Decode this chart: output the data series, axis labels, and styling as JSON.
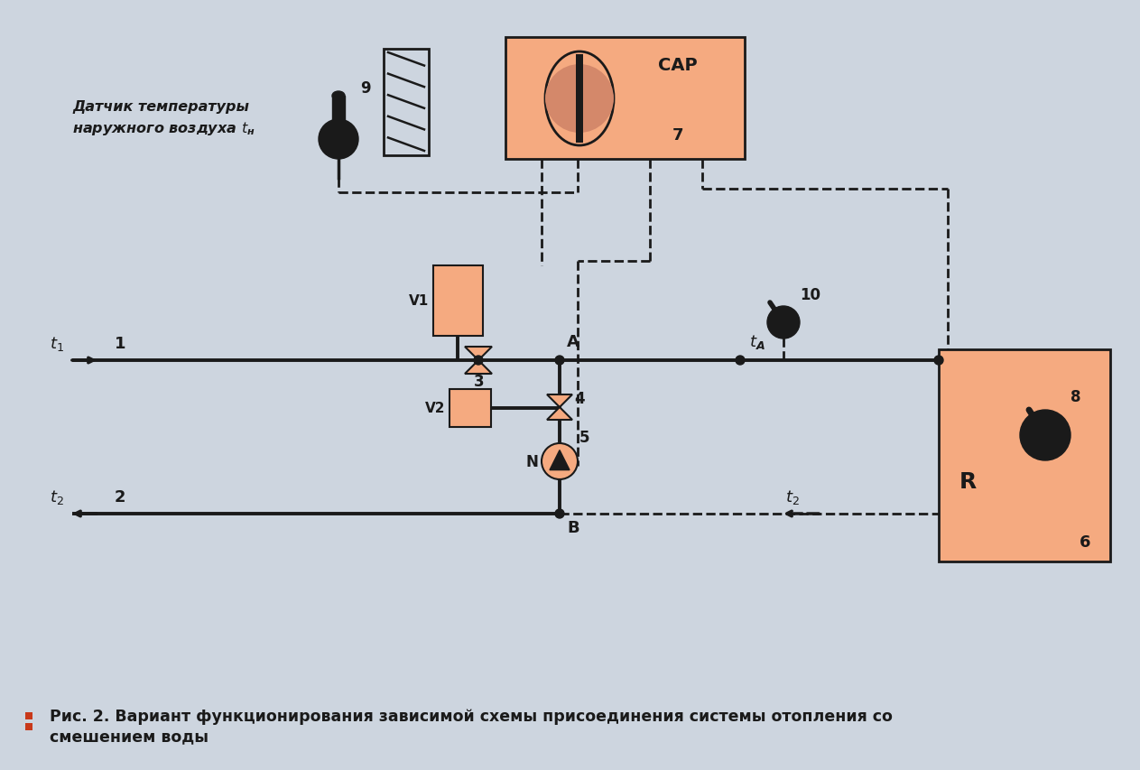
{
  "bg_color": "#cdd5df",
  "salmon": "#f5aa80",
  "black": "#1a1a1a",
  "figsize": [
    12.63,
    8.54
  ],
  "dpi": 100,
  "caption_line1": "Рис. 2. Вариант функционирования зависимой схемы присоединения системы отопления со",
  "caption_line2": "смешением воды",
  "sensor9_label1": "Датчик температуры",
  "sensor9_label2": "наружного воздуха"
}
